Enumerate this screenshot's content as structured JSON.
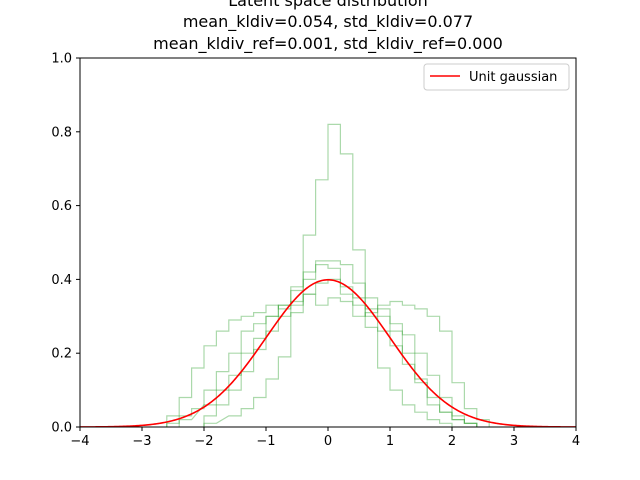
{
  "chart_data": {
    "type": "line",
    "title_lines": [
      "Latent space distribution",
      "mean_kldiv=0.054, std_kldiv=0.077",
      "mean_kldiv_ref=0.001, std_kldiv_ref=0.000"
    ],
    "xlabel": "",
    "ylabel": "",
    "xlim": [
      -4,
      4
    ],
    "ylim": [
      0.0,
      1.0
    ],
    "xticks": [
      -4,
      -3,
      -2,
      -1,
      0,
      1,
      2,
      3,
      4
    ],
    "xtick_labels": [
      "−4",
      "−3",
      "−2",
      "−1",
      "0",
      "1",
      "2",
      "3",
      "4"
    ],
    "yticks": [
      0.0,
      0.2,
      0.4,
      0.6,
      0.8,
      1.0
    ],
    "ytick_labels": [
      "0.0",
      "0.2",
      "0.4",
      "0.6",
      "0.8",
      "1.0"
    ],
    "grid": false,
    "legend": {
      "position": "top-right",
      "entries": [
        {
          "label": "Unit gaussian",
          "color": "#ff0000"
        }
      ]
    },
    "reference": {
      "label": "Unit gaussian",
      "mean": 0,
      "std": 1,
      "color": "#ff0000"
    },
    "histograms": {
      "style": "step",
      "color": "#2ca02c",
      "opacity": 0.4,
      "series": [
        {
          "bins": [
            [
              -2.6,
              0.01
            ],
            [
              -2.4,
              0.03
            ],
            [
              -2.2,
              0.05
            ],
            [
              -2.0,
              0.1
            ],
            [
              -1.8,
              0.15
            ],
            [
              -1.6,
              0.2
            ],
            [
              -1.4,
              0.26
            ],
            [
              -1.2,
              0.28
            ],
            [
              -1.0,
              0.3
            ],
            [
              -0.8,
              0.33
            ],
            [
              -0.6,
              0.37
            ],
            [
              -0.4,
              0.4
            ],
            [
              -0.2,
              0.44
            ],
            [
              0.0,
              0.43
            ],
            [
              0.2,
              0.38
            ],
            [
              0.4,
              0.35
            ],
            [
              0.6,
              0.3
            ],
            [
              0.8,
              0.26
            ],
            [
              1.0,
              0.22
            ],
            [
              1.2,
              0.17
            ],
            [
              1.4,
              0.12
            ],
            [
              1.6,
              0.06
            ],
            [
              1.8,
              0.04
            ],
            [
              2.0,
              0.02
            ],
            [
              2.2,
              0.01
            ]
          ],
          "width": 0.2
        },
        {
          "bins": [
            [
              -2.4,
              0.02
            ],
            [
              -2.0,
              0.06
            ],
            [
              -1.8,
              0.1
            ],
            [
              -1.6,
              0.14
            ],
            [
              -1.4,
              0.2
            ],
            [
              -1.2,
              0.24
            ],
            [
              -1.0,
              0.3
            ],
            [
              -0.8,
              0.33
            ],
            [
              -0.6,
              0.38
            ],
            [
              -0.4,
              0.42
            ],
            [
              -0.2,
              0.45
            ],
            [
              0.0,
              0.45
            ],
            [
              0.2,
              0.44
            ],
            [
              0.4,
              0.39
            ],
            [
              0.6,
              0.35
            ],
            [
              0.8,
              0.3
            ],
            [
              1.0,
              0.26
            ],
            [
              1.2,
              0.2
            ],
            [
              1.4,
              0.13
            ],
            [
              1.6,
              0.08
            ],
            [
              1.8,
              0.04
            ],
            [
              2.0,
              0.02
            ],
            [
              2.2,
              0.01
            ]
          ],
          "width": 0.2
        },
        {
          "bins": [
            [
              -2.0,
              0.03
            ],
            [
              -1.8,
              0.06
            ],
            [
              -1.6,
              0.1
            ],
            [
              -1.4,
              0.15
            ],
            [
              -1.2,
              0.21
            ],
            [
              -1.0,
              0.26
            ],
            [
              -0.8,
              0.3
            ],
            [
              -0.6,
              0.33
            ],
            [
              -0.4,
              0.36
            ],
            [
              -0.2,
              0.39
            ],
            [
              0.0,
              0.4
            ],
            [
              0.2,
              0.36
            ],
            [
              0.4,
              0.33
            ],
            [
              0.6,
              0.32
            ],
            [
              0.8,
              0.33
            ],
            [
              1.0,
              0.34
            ],
            [
              1.2,
              0.33
            ],
            [
              1.4,
              0.32
            ],
            [
              1.6,
              0.3
            ],
            [
              1.8,
              0.26
            ],
            [
              2.0,
              0.12
            ],
            [
              2.2,
              0.05
            ],
            [
              2.4,
              0.02
            ]
          ],
          "width": 0.2
        },
        {
          "bins": [
            [
              -2.6,
              0.03
            ],
            [
              -2.4,
              0.08
            ],
            [
              -2.2,
              0.16
            ],
            [
              -2.0,
              0.22
            ],
            [
              -1.8,
              0.26
            ],
            [
              -1.6,
              0.29
            ],
            [
              -1.4,
              0.3
            ],
            [
              -1.2,
              0.31
            ],
            [
              -1.0,
              0.33
            ],
            [
              -0.8,
              0.32
            ],
            [
              -0.6,
              0.34
            ],
            [
              -0.4,
              0.36
            ],
            [
              -0.2,
              0.33
            ],
            [
              0.0,
              0.35
            ],
            [
              0.2,
              0.34
            ],
            [
              0.4,
              0.3
            ],
            [
              0.6,
              0.31
            ],
            [
              0.8,
              0.32
            ],
            [
              1.0,
              0.28
            ],
            [
              1.2,
              0.25
            ],
            [
              1.4,
              0.2
            ],
            [
              1.6,
              0.14
            ],
            [
              1.8,
              0.08
            ],
            [
              2.0,
              0.03
            ],
            [
              2.2,
              0.01
            ]
          ],
          "width": 0.2
        },
        {
          "bins": [
            [
              -2.0,
              0.01
            ],
            [
              -1.6,
              0.03
            ],
            [
              -1.4,
              0.05
            ],
            [
              -1.2,
              0.08
            ],
            [
              -1.0,
              0.13
            ],
            [
              -0.8,
              0.19
            ],
            [
              -0.6,
              0.31
            ],
            [
              -0.4,
              0.52
            ],
            [
              -0.2,
              0.67
            ],
            [
              0.0,
              0.82
            ],
            [
              0.2,
              0.74
            ],
            [
              0.4,
              0.48
            ],
            [
              0.6,
              0.27
            ],
            [
              0.8,
              0.16
            ],
            [
              1.0,
              0.1
            ],
            [
              1.2,
              0.06
            ],
            [
              1.4,
              0.04
            ],
            [
              1.6,
              0.02
            ],
            [
              1.8,
              0.01
            ]
          ],
          "width": 0.2
        }
      ]
    }
  }
}
